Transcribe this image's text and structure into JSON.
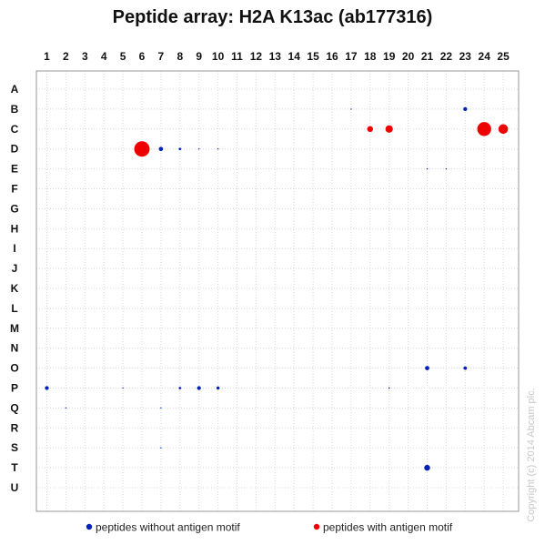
{
  "title": "Peptide array: H2A K13ac (ab177316)",
  "copyright": "Copyright (c) 2014 Abcam plc.",
  "colors": {
    "without_motif": "#0022bb",
    "with_motif": "#ee0000",
    "grid": "#d8d8d8",
    "frame": "#999999"
  },
  "chart_data": {
    "type": "scatter",
    "title": "Peptide array: H2A K13ac (ab177316)",
    "x_ticks": [
      "1",
      "2",
      "3",
      "4",
      "5",
      "6",
      "7",
      "8",
      "9",
      "10",
      "11",
      "12",
      "13",
      "14",
      "15",
      "16",
      "17",
      "18",
      "19",
      "20",
      "21",
      "22",
      "23",
      "24",
      "25"
    ],
    "y_ticks": [
      "A",
      "B",
      "C",
      "D",
      "E",
      "F",
      "G",
      "H",
      "I",
      "J",
      "K",
      "L",
      "M",
      "N",
      "O",
      "P",
      "Q",
      "R",
      "S",
      "T",
      "U"
    ],
    "grid": true,
    "series": [
      {
        "name": "peptides without antigen motif",
        "color": "#0022bb",
        "points": [
          {
            "x": 23,
            "y": "B",
            "intensity": 0.25
          },
          {
            "x": 17,
            "y": "B",
            "intensity": 0.03
          },
          {
            "x": 7,
            "y": "D",
            "intensity": 0.28
          },
          {
            "x": 8,
            "y": "D",
            "intensity": 0.16
          },
          {
            "x": 9,
            "y": "D",
            "intensity": 0.08
          },
          {
            "x": 10,
            "y": "D",
            "intensity": 0.05
          },
          {
            "x": 21,
            "y": "E",
            "intensity": 0.08
          },
          {
            "x": 22,
            "y": "E",
            "intensity": 0.05
          },
          {
            "x": 21,
            "y": "O",
            "intensity": 0.28
          },
          {
            "x": 23,
            "y": "O",
            "intensity": 0.22
          },
          {
            "x": 1,
            "y": "P",
            "intensity": 0.25
          },
          {
            "x": 5,
            "y": "P",
            "intensity": 0.03
          },
          {
            "x": 8,
            "y": "P",
            "intensity": 0.16
          },
          {
            "x": 9,
            "y": "P",
            "intensity": 0.25
          },
          {
            "x": 10,
            "y": "P",
            "intensity": 0.2
          },
          {
            "x": 19,
            "y": "P",
            "intensity": 0.1
          },
          {
            "x": 2,
            "y": "Q",
            "intensity": 0.04
          },
          {
            "x": 7,
            "y": "Q",
            "intensity": 0.08
          },
          {
            "x": 7,
            "y": "S",
            "intensity": 0.04
          },
          {
            "x": 21,
            "y": "T",
            "intensity": 0.38
          }
        ]
      },
      {
        "name": "peptides with antigen motif",
        "color": "#ee0000",
        "points": [
          {
            "x": 6,
            "y": "D",
            "intensity": 1.0
          },
          {
            "x": 18,
            "y": "C",
            "intensity": 0.38
          },
          {
            "x": 19,
            "y": "C",
            "intensity": 0.48
          },
          {
            "x": 24,
            "y": "C",
            "intensity": 0.9
          },
          {
            "x": 25,
            "y": "C",
            "intensity": 0.62
          }
        ]
      }
    ],
    "legend": [
      {
        "label": "peptides without antigen motif",
        "color": "#0022bb"
      },
      {
        "label": "peptides with antigen motif",
        "color": "#ee0000"
      }
    ],
    "legend_position": "bottom"
  }
}
